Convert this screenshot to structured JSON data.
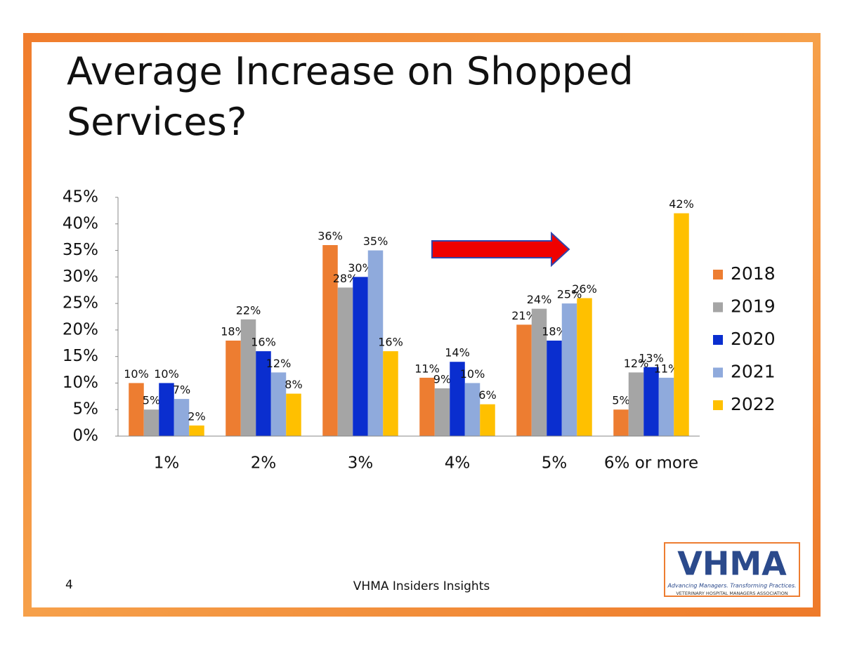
{
  "chart_data": {
    "type": "bar",
    "title": "Average Increase on Shopped Services?",
    "categories": [
      "1%",
      "2%",
      "3%",
      "4%",
      "5%",
      "6% or more"
    ],
    "series": [
      {
        "name": "2018",
        "color": "#ED7D31",
        "values": [
          10,
          18,
          36,
          11,
          21,
          5
        ],
        "value_labels": [
          "10%",
          "18%",
          "36%",
          "11%",
          "21%",
          "5%"
        ]
      },
      {
        "name": "2019",
        "color": "#A5A5A5",
        "values": [
          5,
          22,
          28,
          9,
          24,
          12
        ],
        "value_labels": [
          "5%",
          "22%",
          "28%",
          "9%",
          "24%",
          "12%"
        ]
      },
      {
        "name": "2020",
        "color": "#0A2ECF",
        "values": [
          10,
          16,
          30,
          14,
          18,
          13
        ],
        "value_labels": [
          "10%",
          "16%",
          "30%",
          "14%",
          "18%",
          "13%"
        ]
      },
      {
        "name": "2021",
        "color": "#8FAADC",
        "values": [
          7,
          12,
          35,
          10,
          25,
          11
        ],
        "value_labels": [
          "7%",
          "12%",
          "35%",
          "10%",
          "25%",
          "11%"
        ]
      },
      {
        "name": "2022",
        "color": "#FFC000",
        "values": [
          2,
          8,
          16,
          6,
          26,
          42
        ],
        "value_labels": [
          "2%",
          "8%",
          "16%",
          "6%",
          "26%",
          "42%"
        ]
      }
    ],
    "ylim": [
      0,
      45
    ],
    "yticks": [
      {
        "value": 0,
        "label": "0%"
      },
      {
        "value": 5,
        "label": "5%"
      },
      {
        "value": 10,
        "label": "10%"
      },
      {
        "value": 15,
        "label": "15%"
      },
      {
        "value": 20,
        "label": "20%"
      },
      {
        "value": 25,
        "label": "25%"
      },
      {
        "value": 30,
        "label": "30%"
      },
      {
        "value": 35,
        "label": "35%"
      },
      {
        "value": 40,
        "label": "40%"
      },
      {
        "value": 45,
        "label": "45%"
      }
    ],
    "grid": false,
    "legend": "right"
  },
  "slide": {
    "page_number": "4",
    "footer": "VHMA Insiders Insights",
    "logo": {
      "name": "VHMA",
      "tagline": "Advancing Managers. Transforming Practices.",
      "subtitle": "VETERINARY HOSPITAL MANAGERS ASSOCIATION"
    }
  }
}
